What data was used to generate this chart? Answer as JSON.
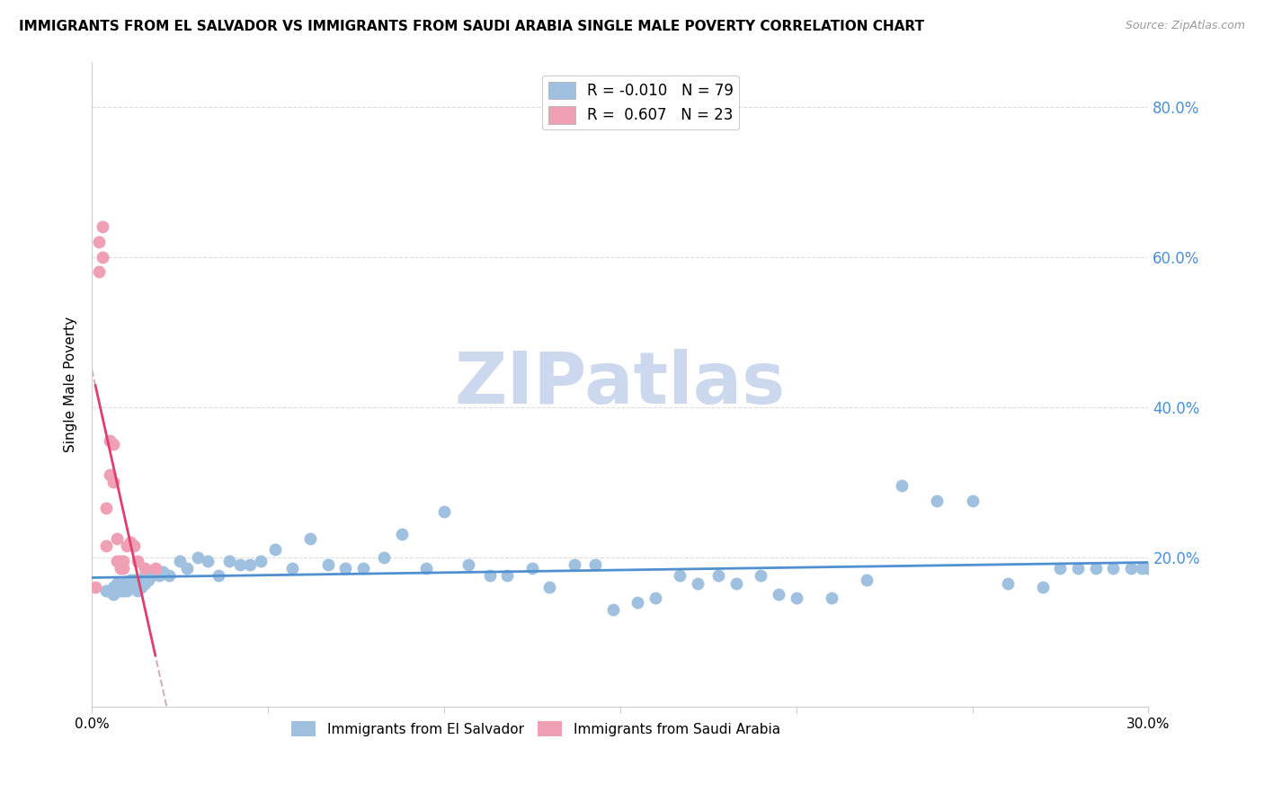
{
  "title": "IMMIGRANTS FROM EL SALVADOR VS IMMIGRANTS FROM SAUDI ARABIA SINGLE MALE POVERTY CORRELATION CHART",
  "source": "Source: ZipAtlas.com",
  "ylabel": "Single Male Poverty",
  "xlim": [
    0.0,
    0.3
  ],
  "ylim": [
    0.0,
    0.86
  ],
  "yticks": [
    0.2,
    0.4,
    0.6,
    0.8
  ],
  "ytick_labels_right": [
    "20.0%",
    "40.0%",
    "60.0%",
    "80.0%"
  ],
  "legend_label1": "Immigrants from El Salvador",
  "legend_label2": "Immigrants from Saudi Arabia",
  "watermark": "ZIPatlas",
  "blue_r": -0.01,
  "blue_n": 79,
  "pink_r": 0.607,
  "pink_n": 23,
  "blue_scatter_x": [
    0.004,
    0.005,
    0.006,
    0.006,
    0.007,
    0.007,
    0.008,
    0.008,
    0.009,
    0.009,
    0.01,
    0.01,
    0.011,
    0.011,
    0.012,
    0.012,
    0.013,
    0.013,
    0.014,
    0.014,
    0.015,
    0.015,
    0.016,
    0.017,
    0.018,
    0.019,
    0.02,
    0.022,
    0.025,
    0.027,
    0.03,
    0.033,
    0.036,
    0.039,
    0.042,
    0.045,
    0.048,
    0.052,
    0.057,
    0.062,
    0.067,
    0.072,
    0.077,
    0.083,
    0.088,
    0.095,
    0.1,
    0.107,
    0.113,
    0.118,
    0.125,
    0.13,
    0.137,
    0.143,
    0.148,
    0.155,
    0.16,
    0.167,
    0.172,
    0.178,
    0.183,
    0.19,
    0.195,
    0.2,
    0.21,
    0.22,
    0.23,
    0.24,
    0.25,
    0.26,
    0.27,
    0.275,
    0.28,
    0.285,
    0.29,
    0.295,
    0.298,
    0.3,
    0.3
  ],
  "blue_scatter_y": [
    0.155,
    0.155,
    0.15,
    0.16,
    0.155,
    0.165,
    0.155,
    0.16,
    0.155,
    0.165,
    0.155,
    0.165,
    0.16,
    0.17,
    0.16,
    0.17,
    0.155,
    0.165,
    0.16,
    0.17,
    0.165,
    0.175,
    0.17,
    0.175,
    0.18,
    0.175,
    0.18,
    0.175,
    0.195,
    0.185,
    0.2,
    0.195,
    0.175,
    0.195,
    0.19,
    0.19,
    0.195,
    0.21,
    0.185,
    0.225,
    0.19,
    0.185,
    0.185,
    0.2,
    0.23,
    0.185,
    0.26,
    0.19,
    0.175,
    0.175,
    0.185,
    0.16,
    0.19,
    0.19,
    0.13,
    0.14,
    0.145,
    0.175,
    0.165,
    0.175,
    0.165,
    0.175,
    0.15,
    0.145,
    0.145,
    0.17,
    0.295,
    0.275,
    0.275,
    0.165,
    0.16,
    0.185,
    0.185,
    0.185,
    0.185,
    0.185,
    0.185,
    0.185,
    0.185
  ],
  "pink_scatter_x": [
    0.001,
    0.002,
    0.002,
    0.003,
    0.003,
    0.004,
    0.004,
    0.005,
    0.005,
    0.006,
    0.006,
    0.007,
    0.007,
    0.008,
    0.008,
    0.009,
    0.009,
    0.01,
    0.011,
    0.012,
    0.013,
    0.015,
    0.018
  ],
  "pink_scatter_y": [
    0.16,
    0.62,
    0.58,
    0.64,
    0.6,
    0.215,
    0.265,
    0.31,
    0.355,
    0.3,
    0.35,
    0.225,
    0.195,
    0.185,
    0.195,
    0.185,
    0.195,
    0.215,
    0.22,
    0.215,
    0.195,
    0.185,
    0.185
  ],
  "blue_line_color": "#5090d0",
  "pink_line_color": "#e04070",
  "pink_dash_color": "#d0b0b8",
  "scatter_blue_color": "#a0c0e0",
  "scatter_pink_color": "#f0a0b5",
  "title_fontsize": 11,
  "source_fontsize": 9,
  "watermark_color": "#ccd8ee",
  "grid_color": "#dddddd",
  "axis_color": "#cccccc"
}
